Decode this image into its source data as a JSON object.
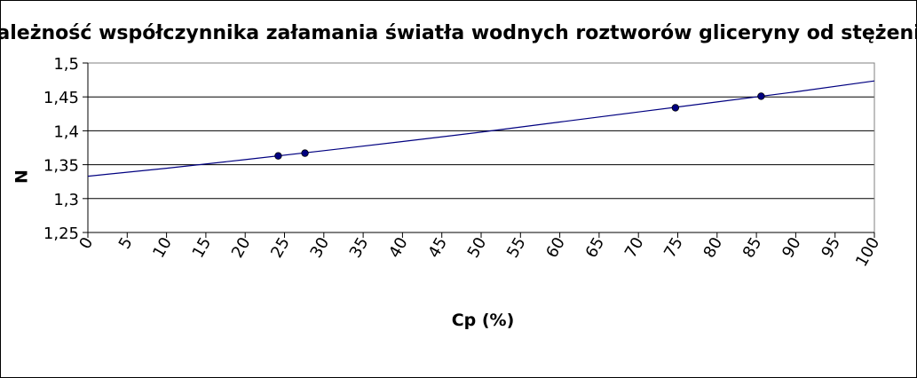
{
  "chart_data": {
    "type": "line",
    "title": "Zależność współczynnika załamania światła wodnych roztworów gliceryny od stężenia",
    "xlabel": "Cp (%)",
    "ylabel": "N",
    "xlim": [
      0,
      100
    ],
    "ylim": [
      1.25,
      1.5
    ],
    "x_ticks": [
      "0",
      "5",
      "10",
      "15",
      "20",
      "25",
      "30",
      "35",
      "40",
      "45",
      "50",
      "55",
      "60",
      "65",
      "70",
      "75",
      "80",
      "85",
      "90",
      "95",
      "100"
    ],
    "y_ticks": [
      "1,25",
      "1,3",
      "1,35",
      "1,4",
      "1,45",
      "1,5"
    ],
    "grid": {
      "horizontal": true,
      "vertical": false
    },
    "legend": "none",
    "series": [
      {
        "type": "line",
        "color": "#000080",
        "x": [
          0,
          10,
          20,
          30,
          40,
          50,
          60,
          70,
          80,
          90,
          100
        ],
        "y": [
          1.333,
          1.3448,
          1.3575,
          1.3707,
          1.3841,
          1.3981,
          1.4129,
          1.4277,
          1.4426,
          1.4575,
          1.4735
        ]
      },
      {
        "type": "scatter",
        "color": "#000080",
        "x": [
          24.2,
          27.6,
          74.7,
          85.6
        ],
        "y": [
          1.363,
          1.367,
          1.434,
          1.451
        ]
      }
    ]
  }
}
